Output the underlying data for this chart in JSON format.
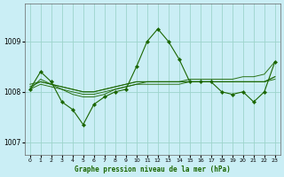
{
  "xlabel": "Graphe pression niveau de la mer (hPa)",
  "background_color": "#caeef5",
  "grid_color": "#9dd4cc",
  "line_color": "#1a6600",
  "xlim": [
    -0.5,
    23.5
  ],
  "ylim": [
    1006.75,
    1009.75
  ],
  "yticks": [
    1007,
    1008,
    1009
  ],
  "xticks": [
    0,
    1,
    2,
    3,
    4,
    5,
    6,
    7,
    8,
    9,
    10,
    11,
    12,
    13,
    14,
    15,
    16,
    17,
    18,
    19,
    20,
    21,
    22,
    23
  ],
  "series_smooth": [
    [
      1008.05,
      1008.15,
      1008.1,
      1008.05,
      1008.0,
      1007.95,
      1007.95,
      1008.0,
      1008.05,
      1008.1,
      1008.15,
      1008.2,
      1008.2,
      1008.2,
      1008.2,
      1008.2,
      1008.2,
      1008.2,
      1008.2,
      1008.2,
      1008.2,
      1008.2,
      1008.2,
      1008.25
    ],
    [
      1008.1,
      1008.2,
      1008.15,
      1008.1,
      1008.05,
      1008.0,
      1008.0,
      1008.05,
      1008.1,
      1008.15,
      1008.2,
      1008.2,
      1008.2,
      1008.2,
      1008.2,
      1008.2,
      1008.2,
      1008.2,
      1008.2,
      1008.2,
      1008.2,
      1008.2,
      1008.2,
      1008.3
    ],
    [
      1008.15,
      1008.2,
      1008.15,
      1008.1,
      1008.05,
      1008.0,
      1008.0,
      1008.05,
      1008.1,
      1008.15,
      1008.2,
      1008.2,
      1008.2,
      1008.2,
      1008.2,
      1008.25,
      1008.25,
      1008.25,
      1008.25,
      1008.25,
      1008.3,
      1008.3,
      1008.35,
      1008.6
    ],
    [
      1008.05,
      1008.25,
      1008.15,
      1008.05,
      1007.95,
      1007.9,
      1007.9,
      1007.95,
      1008.05,
      1008.1,
      1008.15,
      1008.15,
      1008.15,
      1008.15,
      1008.15,
      1008.2,
      1008.2,
      1008.2,
      1008.2,
      1008.2,
      1008.2,
      1008.2,
      1008.2,
      1008.3
    ]
  ],
  "series_volatile": [
    1008.05,
    1008.4,
    1008.2,
    1007.8,
    1007.65,
    1007.35,
    1007.75,
    1007.9,
    1008.0,
    1008.05,
    1008.5,
    1009.0,
    1009.25,
    1009.0,
    1008.65,
    1008.2,
    1008.2,
    1008.2,
    1008.0,
    1007.95,
    1008.0,
    1007.8,
    1008.0,
    1008.6
  ]
}
